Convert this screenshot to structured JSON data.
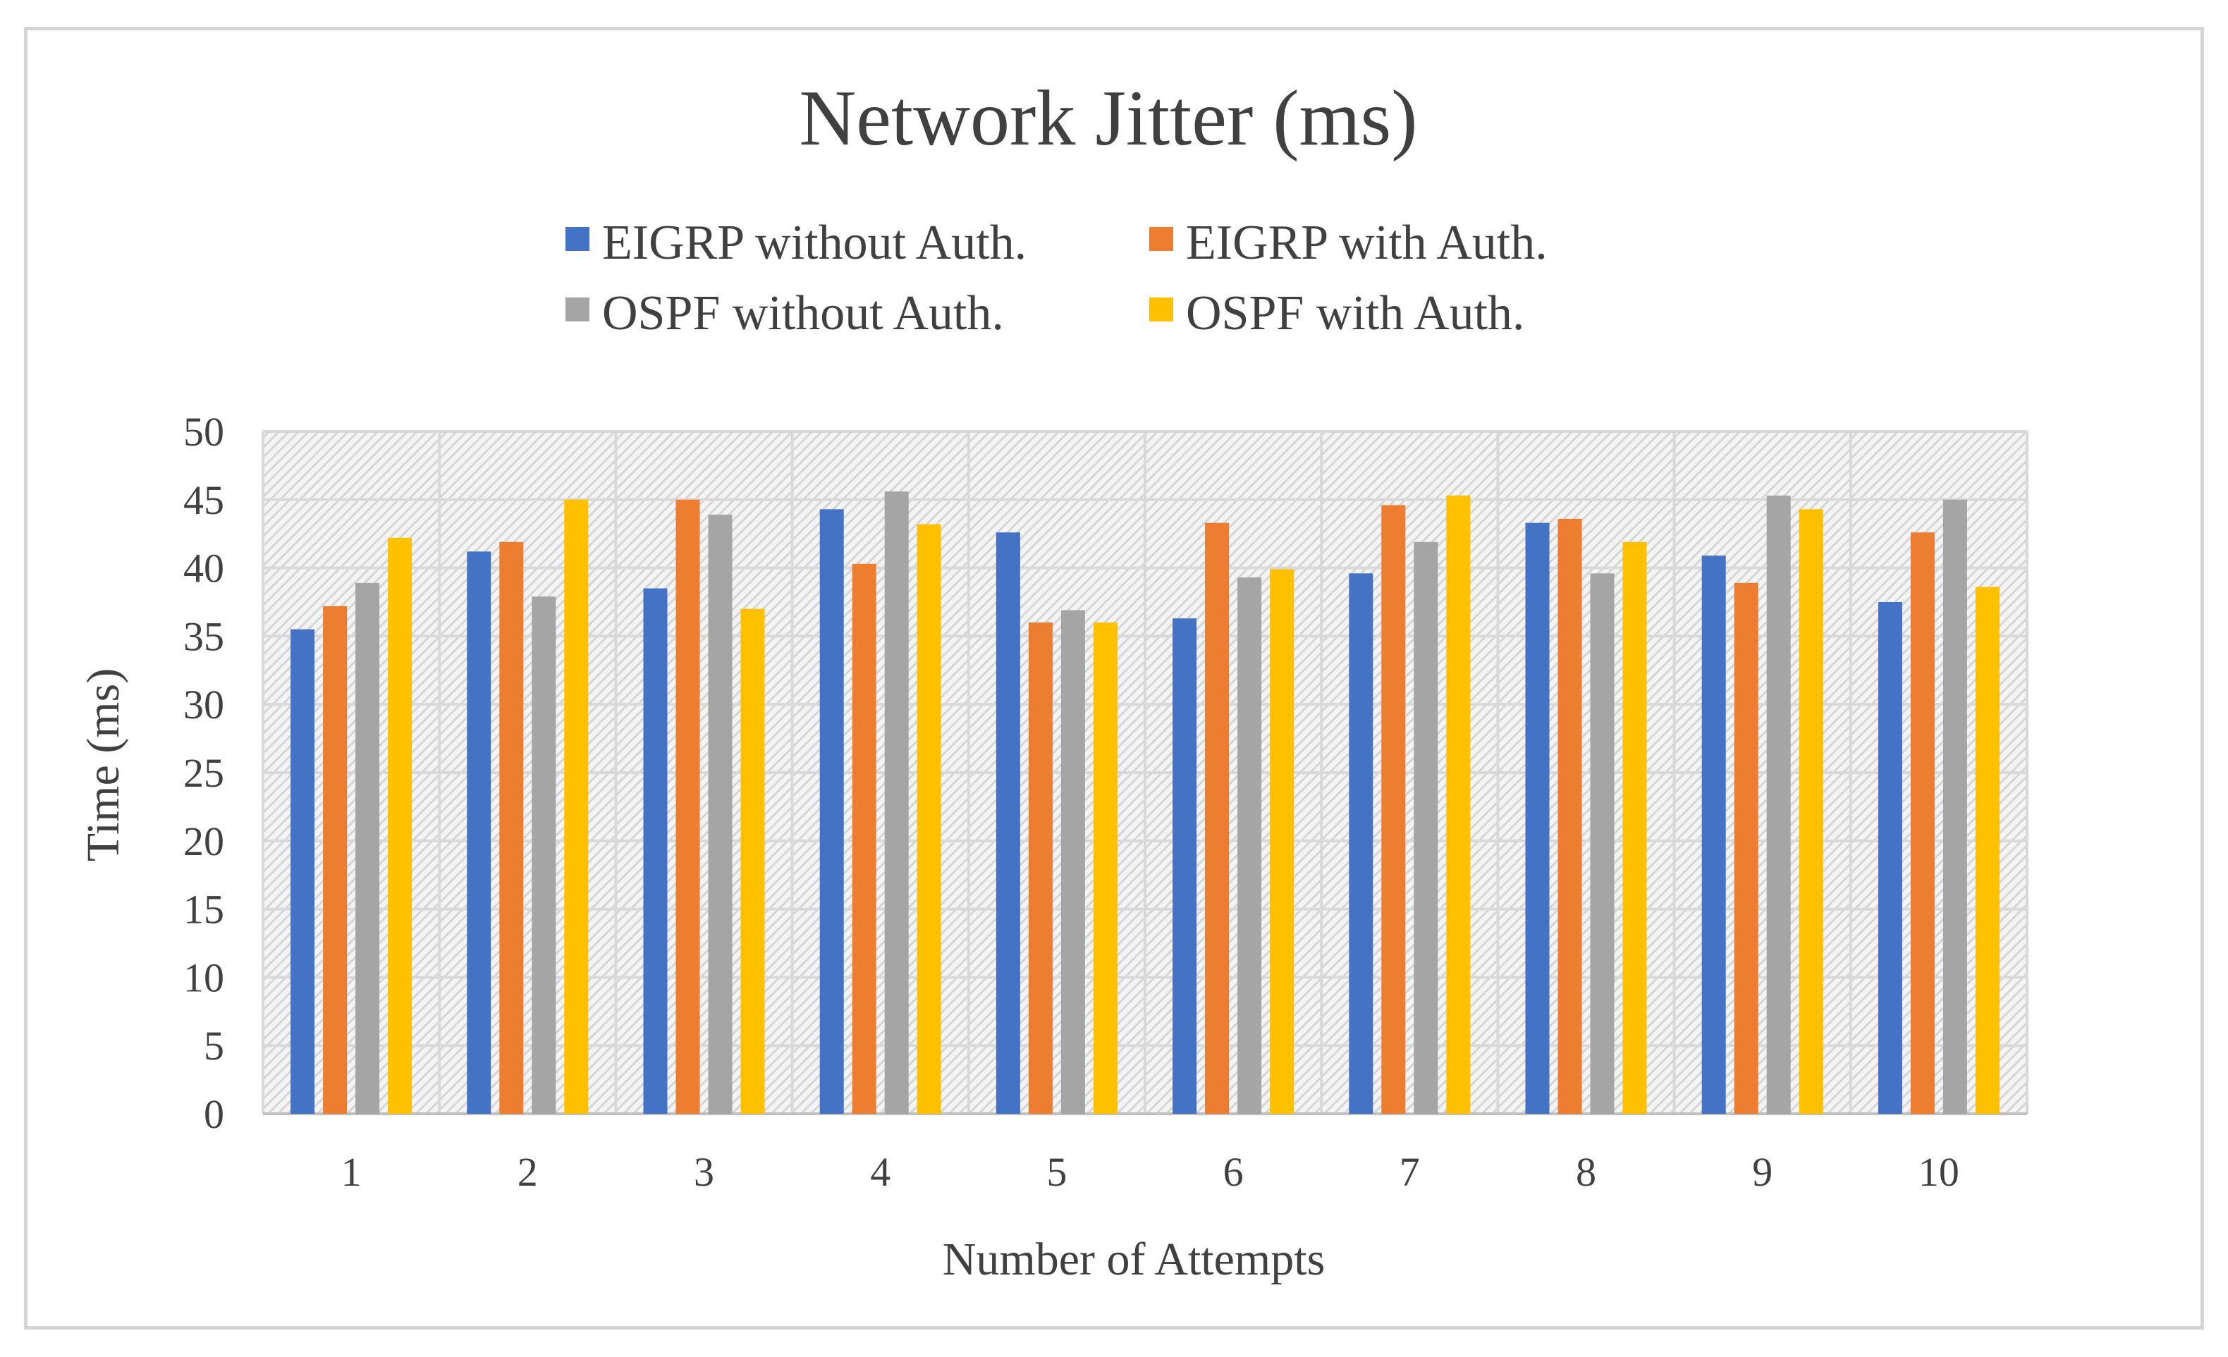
{
  "chart_data": {
    "type": "bar",
    "title": "Network Jitter (ms)",
    "xlabel": "Number of Attempts",
    "ylabel": "Time (ms)",
    "ylim": [
      0,
      50
    ],
    "yticks": [
      0,
      5,
      10,
      15,
      20,
      25,
      30,
      35,
      40,
      45,
      50
    ],
    "categories": [
      "1",
      "2",
      "3",
      "4",
      "5",
      "6",
      "7",
      "8",
      "9",
      "10"
    ],
    "grid": true,
    "legend_position": "top",
    "series": [
      {
        "name": "EIGRP without Auth.",
        "color": "#4472c4",
        "values": [
          35.5,
          41.2,
          38.5,
          44.3,
          42.6,
          36.3,
          39.6,
          43.3,
          40.9,
          37.5
        ]
      },
      {
        "name": "EIGRP with Auth.",
        "color": "#ed7d31",
        "values": [
          37.2,
          41.9,
          45.0,
          40.3,
          36.0,
          43.3,
          44.6,
          43.6,
          38.9,
          42.6
        ]
      },
      {
        "name": "OSPF without Auth.",
        "color": "#a5a5a5",
        "values": [
          38.9,
          37.9,
          43.9,
          45.6,
          36.9,
          39.3,
          41.9,
          39.6,
          45.3,
          45.0
        ]
      },
      {
        "name": "OSPF with Auth.",
        "color": "#ffc000",
        "values": [
          42.2,
          45.0,
          37.0,
          43.2,
          36.0,
          39.9,
          45.3,
          41.9,
          44.3,
          38.6
        ]
      }
    ]
  }
}
